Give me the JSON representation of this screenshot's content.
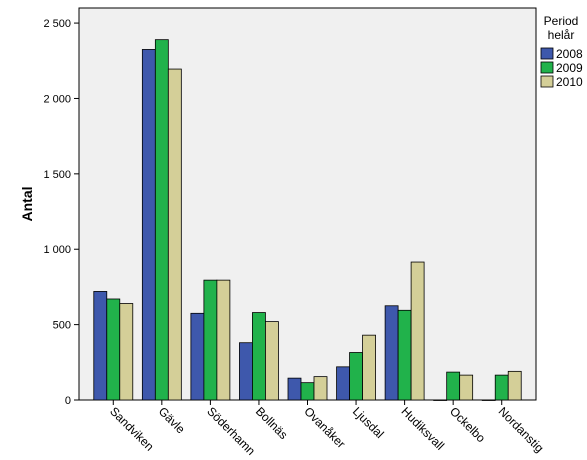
{
  "chart_data": {
    "type": "bar",
    "ylabel": "Antal",
    "xlabel": "",
    "categories": [
      "Sandviken",
      "Gävle",
      "Söderhamn",
      "Bollnäs",
      "Ovanåker",
      "Ljusdal",
      "Hudiksvall",
      "Ockelbo",
      "Nordanstig"
    ],
    "ylim": [
      0,
      2600
    ],
    "yticks": [
      0,
      500,
      1000,
      1500,
      2000,
      2500
    ],
    "ytick_labels": [
      "0",
      "500",
      "1 000",
      "1 500",
      "2 000",
      "2 500"
    ],
    "legend": {
      "title_line1": "Period",
      "title_line2": "helår",
      "placement": "right"
    },
    "grid": false,
    "series": [
      {
        "name": "2008",
        "color": "#3e58ac",
        "values": [
          720,
          2325,
          575,
          380,
          145,
          220,
          625,
          0,
          0
        ]
      },
      {
        "name": "2009",
        "color": "#21b24b",
        "values": [
          670,
          2390,
          795,
          580,
          115,
          315,
          595,
          185,
          165
        ]
      },
      {
        "name": "2010",
        "color": "#d4cf98",
        "values": [
          640,
          2195,
          795,
          520,
          155,
          430,
          915,
          165,
          190
        ]
      }
    ]
  }
}
